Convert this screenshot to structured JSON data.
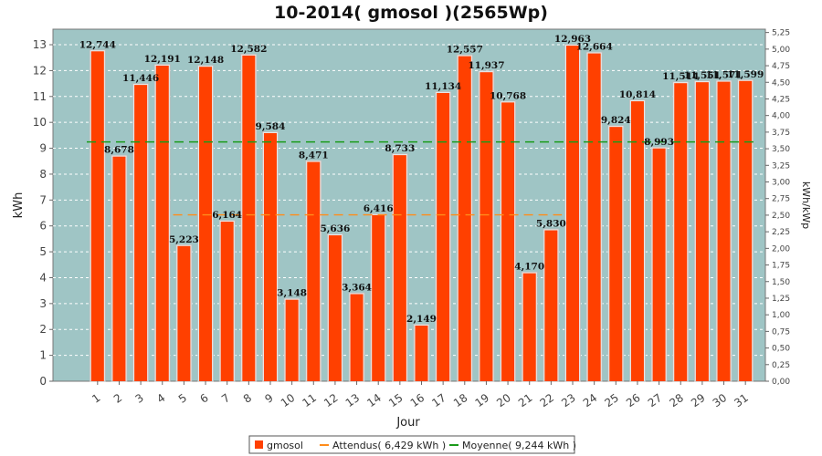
{
  "chart_data": {
    "type": "bar",
    "title": "10-2014( gmosol )(2565Wp)",
    "xlabel": "Jour",
    "ylabel": "kWh",
    "ylabel_right": "kWh/kWp",
    "ylim": [
      0,
      13.6
    ],
    "ylim_right": [
      0,
      5.3
    ],
    "yticks": [
      "0",
      "1",
      "2",
      "3",
      "4",
      "5",
      "6",
      "7",
      "8",
      "9",
      "10",
      "11",
      "12",
      "13"
    ],
    "yticks_right": [
      "0,00",
      "0,25",
      "0,50",
      "0,75",
      "1,00",
      "1,25",
      "1,50",
      "1,75",
      "2,00",
      "2,25",
      "2,50",
      "2,75",
      "3,00",
      "3,25",
      "3,50",
      "3,75",
      "4,00",
      "4,25",
      "4,50",
      "4,75",
      "5,00",
      "5,25"
    ],
    "categories": [
      "1",
      "2",
      "3",
      "4",
      "5",
      "6",
      "7",
      "8",
      "9",
      "10",
      "11",
      "12",
      "13",
      "14",
      "15",
      "16",
      "17",
      "18",
      "19",
      "20",
      "21",
      "22",
      "23",
      "24",
      "25",
      "26",
      "27",
      "28",
      "29",
      "30",
      "31"
    ],
    "series": [
      {
        "name": "gmosol",
        "color": "#ff4000",
        "values": [
          12.744,
          8.678,
          11.446,
          12.191,
          5.223,
          12.148,
          6.164,
          12.582,
          9.584,
          3.148,
          8.471,
          5.636,
          3.364,
          6.416,
          8.733,
          2.149,
          11.134,
          12.557,
          11.937,
          10.768,
          4.17,
          5.83,
          12.963,
          12.664,
          9.824,
          10.814,
          8.993,
          11.514,
          11.551,
          11.571,
          11.599
        ],
        "labels": [
          "12,744",
          "8,678",
          "11,446",
          "12,191",
          "5,223",
          "12,148",
          "6,164",
          "12,582",
          "9,584",
          "3,148",
          "8,471",
          "5,636",
          "3,364",
          "6,416",
          "8,733",
          "2,149",
          "11,134",
          "12,557",
          "11,937",
          "10,768",
          "4,170",
          "5,830",
          "12,963",
          "12,664",
          "9,824",
          "10,814",
          "8,993",
          "11,514",
          "11,551",
          "11,571",
          "11,599"
        ]
      }
    ],
    "reference_lines": [
      {
        "name": "Attendus( 6,429 kWh )",
        "value": 6.429,
        "color": "#ff8c1a",
        "x_from": 4,
        "x_to": 22
      },
      {
        "name": "Moyenne( 9,244 kWh )",
        "value": 9.244,
        "color": "#1a9a1a",
        "x_from": 0,
        "x_to": 31
      }
    ],
    "plot_background": "#9fc5c5",
    "grid": true,
    "legend_position": "bottom"
  }
}
